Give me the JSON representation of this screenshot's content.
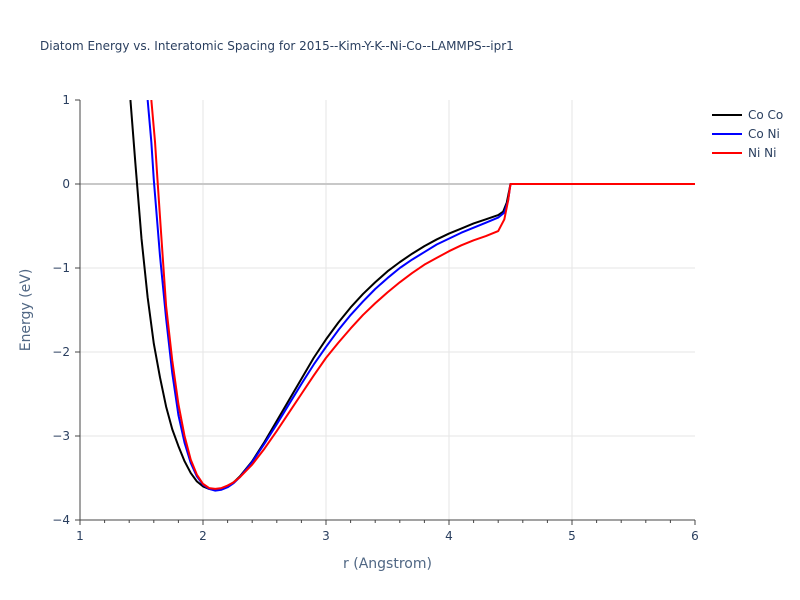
{
  "chart_data": {
    "type": "line",
    "title": "Diatom Energy vs. Interatomic Spacing for 2015--Kim-Y-K--Ni-Co--LAMMPS--ipr1",
    "xlabel": "r (Angstrom)",
    "ylabel": "Energy (eV)",
    "xlim": [
      1,
      6
    ],
    "ylim": [
      -4,
      1
    ],
    "xticks": [
      1,
      2,
      3,
      4,
      5,
      6
    ],
    "yticks": [
      -4,
      -3,
      -2,
      -1,
      0,
      1
    ],
    "ytick_labels": [
      "−4",
      "−3",
      "−2",
      "−1",
      "0",
      "1"
    ],
    "grid": true,
    "legend_position": "top-right",
    "series": [
      {
        "name": "Co Co",
        "color": "#000000",
        "x": [
          1.41,
          1.45,
          1.5,
          1.55,
          1.6,
          1.65,
          1.7,
          1.75,
          1.8,
          1.85,
          1.9,
          1.95,
          2.0,
          2.05,
          2.1,
          2.15,
          2.2,
          2.25,
          2.3,
          2.4,
          2.5,
          2.6,
          2.7,
          2.8,
          2.9,
          3.0,
          3.1,
          3.2,
          3.3,
          3.4,
          3.5,
          3.6,
          3.7,
          3.8,
          3.9,
          4.0,
          4.1,
          4.2,
          4.3,
          4.4,
          4.44,
          4.47,
          4.5,
          4.6,
          5.0,
          5.5,
          6.0
        ],
        "y": [
          1.0,
          0.25,
          -0.65,
          -1.35,
          -1.9,
          -2.3,
          -2.65,
          -2.92,
          -3.12,
          -3.3,
          -3.44,
          -3.54,
          -3.6,
          -3.63,
          -3.64,
          -3.63,
          -3.6,
          -3.55,
          -3.48,
          -3.3,
          -3.07,
          -2.82,
          -2.57,
          -2.32,
          -2.07,
          -1.85,
          -1.65,
          -1.47,
          -1.31,
          -1.17,
          -1.04,
          -0.93,
          -0.83,
          -0.74,
          -0.66,
          -0.59,
          -0.53,
          -0.47,
          -0.42,
          -0.37,
          -0.33,
          -0.22,
          0.0,
          0.0,
          0.0,
          0.0,
          0.0
        ]
      },
      {
        "name": "Co Ni",
        "color": "#0000ff",
        "x": [
          1.55,
          1.58,
          1.6,
          1.65,
          1.7,
          1.75,
          1.8,
          1.85,
          1.9,
          1.95,
          2.0,
          2.05,
          2.1,
          2.15,
          2.2,
          2.25,
          2.3,
          2.4,
          2.5,
          2.6,
          2.7,
          2.8,
          2.9,
          3.0,
          3.1,
          3.2,
          3.3,
          3.4,
          3.5,
          3.6,
          3.7,
          3.8,
          3.9,
          4.0,
          4.1,
          4.2,
          4.3,
          4.4,
          4.45,
          4.48,
          4.5,
          4.6,
          5.0,
          5.5,
          6.0
        ],
        "y": [
          1.0,
          0.5,
          0.05,
          -0.85,
          -1.6,
          -2.25,
          -2.75,
          -3.08,
          -3.32,
          -3.48,
          -3.58,
          -3.63,
          -3.65,
          -3.64,
          -3.61,
          -3.56,
          -3.49,
          -3.31,
          -3.09,
          -2.86,
          -2.62,
          -2.38,
          -2.15,
          -1.94,
          -1.74,
          -1.56,
          -1.4,
          -1.25,
          -1.12,
          -1.0,
          -0.9,
          -0.81,
          -0.72,
          -0.65,
          -0.58,
          -0.52,
          -0.46,
          -0.4,
          -0.34,
          -0.2,
          0.0,
          0.0,
          0.0,
          0.0,
          0.0
        ]
      },
      {
        "name": "Ni Ni",
        "color": "#ff0000",
        "x": [
          1.58,
          1.61,
          1.63,
          1.66,
          1.7,
          1.75,
          1.8,
          1.85,
          1.9,
          1.95,
          2.0,
          2.05,
          2.1,
          2.15,
          2.2,
          2.25,
          2.3,
          2.4,
          2.5,
          2.6,
          2.7,
          2.8,
          2.9,
          3.0,
          3.1,
          3.2,
          3.3,
          3.4,
          3.5,
          3.6,
          3.7,
          3.8,
          3.9,
          4.0,
          4.1,
          4.2,
          4.3,
          4.4,
          4.45,
          4.48,
          4.5,
          4.6,
          5.0,
          5.5,
          6.0
        ],
        "y": [
          1.0,
          0.5,
          0.05,
          -0.6,
          -1.45,
          -2.1,
          -2.62,
          -3.0,
          -3.28,
          -3.46,
          -3.57,
          -3.62,
          -3.63,
          -3.62,
          -3.59,
          -3.55,
          -3.49,
          -3.34,
          -3.15,
          -2.94,
          -2.72,
          -2.5,
          -2.28,
          -2.07,
          -1.89,
          -1.72,
          -1.56,
          -1.42,
          -1.29,
          -1.17,
          -1.06,
          -0.96,
          -0.88,
          -0.8,
          -0.73,
          -0.67,
          -0.62,
          -0.56,
          -0.42,
          -0.2,
          0.0,
          0.0,
          0.0,
          0.0,
          0.0
        ]
      }
    ]
  }
}
